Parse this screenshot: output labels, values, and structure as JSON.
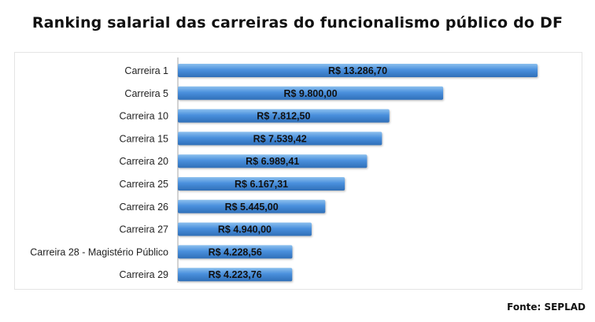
{
  "title": "Ranking salarial das carreiras do funcionalismo público do DF",
  "source": "Fonte: SEPLAD",
  "colors": {
    "bar_top": "#8cc0ee",
    "bar_mid": "#4a90dd",
    "bar_bottom": "#2f6fb8",
    "axis": "#a6a6a6"
  },
  "chart_data": {
    "type": "bar",
    "orientation": "horizontal",
    "title": "Ranking salarial das carreiras do funcionalismo público do DF",
    "xlabel": "",
    "ylabel": "",
    "categories": [
      "Carreira 1",
      "Carreira 5",
      "Carreira 10",
      "Carreira 15",
      "Carreira 20",
      "Carreira 25",
      "Carreira 26",
      "Carreira 27",
      "Carreira 28 - Magistério Público",
      "Carreira 29"
    ],
    "values": [
      13286.7,
      9800.0,
      7812.5,
      7539.42,
      6989.41,
      6167.31,
      5445.0,
      4940.0,
      4228.56,
      4223.76
    ],
    "value_labels": [
      "R$ 13.286,70",
      "R$ 9.800,00",
      "R$ 7.812,50",
      "R$ 7.539,42",
      "R$ 6.989,41",
      "R$ 6.167,31",
      "R$ 5.445,00",
      "R$ 4.940,00",
      "R$ 4.228,56",
      "R$ 4.223,76"
    ],
    "xlim": [
      0,
      13286.7
    ],
    "grid": false,
    "legend": "none"
  }
}
